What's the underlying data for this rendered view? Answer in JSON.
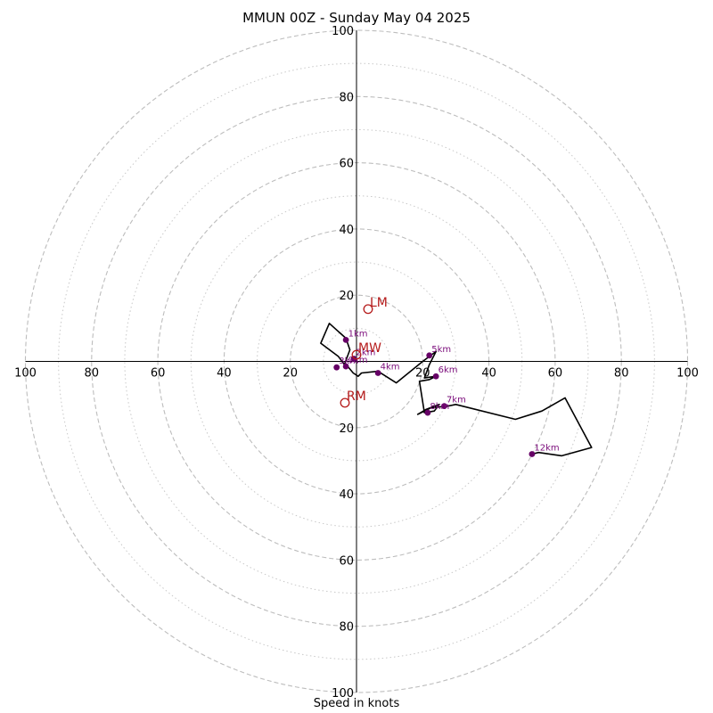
{
  "chart_data": {
    "type": "line",
    "title": "MMUN 00Z - Sunday May 04 2025",
    "xlabel": "Speed in knots",
    "ylabel": "",
    "xlim": [
      -100,
      100
    ],
    "ylim": [
      -100,
      100
    ],
    "ring_major": [
      20,
      40,
      60,
      80,
      100
    ],
    "ring_minor": [
      10,
      30,
      50,
      70,
      90
    ],
    "tick_labels": [
      "20",
      "40",
      "60",
      "80",
      "100"
    ],
    "grid": true,
    "hodograph_color": "#000000",
    "height_marker_color": "#660066",
    "motion_marker_color": "#b51a1a",
    "hodograph": {
      "x": [
        -3.2,
        -5.5,
        -10.8,
        -8.2,
        -3.2,
        -2.0,
        -3.5,
        -1.0,
        0.5,
        1.5,
        6.5,
        12.0,
        20.0,
        24.0,
        22.0,
        20.5,
        24.0,
        22.0,
        19.0,
        20.5,
        23.5,
        25.0,
        21.0,
        18.5,
        22.5,
        27.5,
        30.0,
        48.0,
        56.0,
        63.0,
        71.0,
        62.0,
        55.0,
        53.0
      ],
      "y": [
        -1.5,
        1.5,
        5.5,
        11.5,
        7.0,
        3.5,
        -0.5,
        -3.5,
        -4.5,
        -3.5,
        -3.0,
        -6.5,
        0.0,
        3.0,
        -1.0,
        -5.0,
        -4.5,
        -5.5,
        -6.0,
        -15.5,
        -15.0,
        -13.0,
        -14.5,
        -16.0,
        -14.0,
        -13.5,
        -13.0,
        -17.5,
        -15.0,
        -11.0,
        -26.0,
        -28.5,
        -27.5,
        -28.0
      ]
    },
    "height_markers": [
      {
        "label": "0km",
        "x": -3.2,
        "y": -1.5
      },
      {
        "label": "1km",
        "x": -3.2,
        "y": 6.5
      },
      {
        "label": "2km",
        "x": -0.8,
        "y": 0.8
      },
      {
        "label": "3km",
        "x": -6.0,
        "y": -1.8
      },
      {
        "label": "4km",
        "x": 6.5,
        "y": -3.5
      },
      {
        "label": "5km",
        "x": 22.0,
        "y": 1.8
      },
      {
        "label": "6km",
        "x": 24.0,
        "y": -4.5
      },
      {
        "label": "7km",
        "x": 26.5,
        "y": -13.5
      },
      {
        "label": "8km",
        "x": 21.5,
        "y": -15.5
      },
      {
        "label": "12km",
        "x": 53.0,
        "y": -28.0
      }
    ],
    "motion_markers": [
      {
        "label": "LM",
        "x": 3.5,
        "y": 15.8
      },
      {
        "label": "MW",
        "x": 0.0,
        "y": 2.0
      },
      {
        "label": "RM",
        "x": -3.5,
        "y": -12.5
      }
    ]
  }
}
